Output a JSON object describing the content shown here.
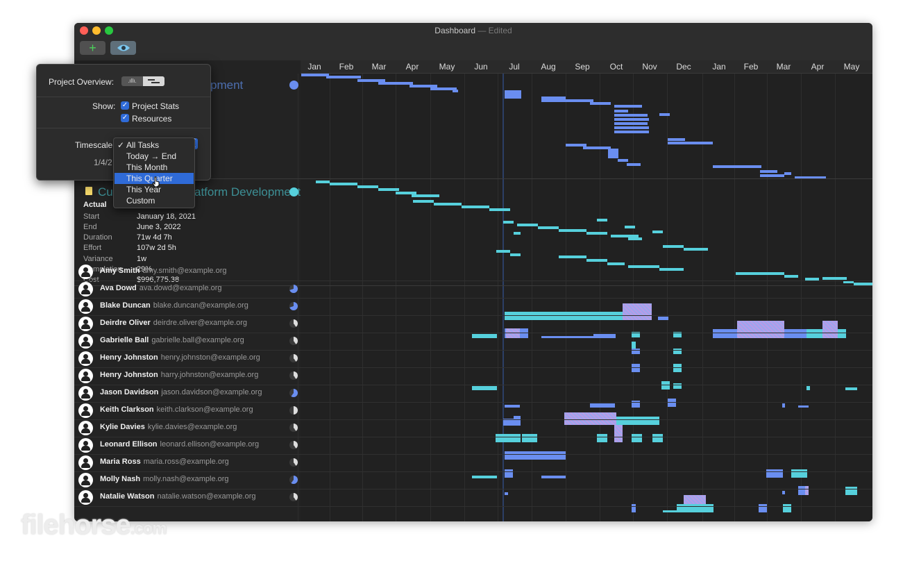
{
  "window": {
    "title": "Dashboard",
    "title_suffix": "— Edited",
    "traffic_lights": [
      "#ff5f57",
      "#febc2e",
      "#28c840"
    ]
  },
  "toolbar": {
    "add_icon": "plus-icon",
    "add_glyph": "+",
    "view_icon": "eye-icon"
  },
  "timeline": {
    "months": [
      "Jan",
      "Feb",
      "Mar",
      "Apr",
      "May",
      "Jun",
      "Jul",
      "Aug",
      "Sep",
      "Oct",
      "Nov",
      "Dec",
      "Jan",
      "Feb",
      "Mar",
      "Apr",
      "May"
    ]
  },
  "popover": {
    "project_overview_label": "Project Overview:",
    "show_label": "Show:",
    "project_stats_label": "Project Stats",
    "resources_label": "Resources",
    "project_stats_checked": true,
    "resources_checked": true,
    "timescale_label": "Timescale:",
    "date_value": "1/4/2"
  },
  "timescale_menu": {
    "selected": "All Tasks",
    "highlighted": "This Quarter",
    "options": [
      "All Tasks",
      "Today → End",
      "This Month",
      "This Quarter",
      "This Year",
      "Custom"
    ]
  },
  "projects": [
    {
      "name_visible": "pment",
      "color": "#6a8ef0"
    },
    {
      "name_visible_left": "Cus",
      "name_visible_right": "atform Development",
      "color": "#56d0dc",
      "stats_heading": "Actual",
      "stats": [
        {
          "label": "Start",
          "value": "January 18, 2021"
        },
        {
          "label": "End",
          "value": "June 3, 2022"
        },
        {
          "label": "Duration",
          "value": "71w 4d 7h"
        },
        {
          "label": "Effort",
          "value": "107w 2d 5h"
        },
        {
          "label": "Variance",
          "value": "1w"
        },
        {
          "label": "Completion",
          "value": "29%"
        },
        {
          "label": "Cost",
          "value": "$996,775.38"
        }
      ]
    }
  ],
  "resources": [
    {
      "name": "Amy Smith",
      "email": "amy.smith@example.org",
      "load": 0
    },
    {
      "name": "Ava Dowd",
      "email": "ava.dowd@example.org",
      "load": 0.7
    },
    {
      "name": "Blake Duncan",
      "email": "blake.duncan@example.org",
      "load": 0.7
    },
    {
      "name": "Deirdre Oliver",
      "email": "deirdre.oliver@example.org",
      "load": 0.4
    },
    {
      "name": "Gabrielle Ball",
      "email": "gabrielle.ball@example.org",
      "load": 0.4
    },
    {
      "name": "Henry Johnston",
      "email": "henry.johnston@example.org",
      "load": 0.4
    },
    {
      "name": "Henry Johnston",
      "email": "harry.johnston@example.org",
      "load": 0.4
    },
    {
      "name": "Jason Davidson",
      "email": "jason.davidson@example.org",
      "load": 0.6
    },
    {
      "name": "Keith Clarkson",
      "email": "keith.clarkson@example.org",
      "load": 0.5
    },
    {
      "name": "Kylie Davies",
      "email": "kylie.davies@example.org",
      "load": 0.4
    },
    {
      "name": "Leonard Ellison",
      "email": "leonard.ellison@example.org",
      "load": 0.4
    },
    {
      "name": "Maria Ross",
      "email": "maria.ross@example.org",
      "load": 0.4
    },
    {
      "name": "Molly Nash",
      "email": "molly.nash@example.org",
      "load": 0.6
    },
    {
      "name": "Natalie Watson",
      "email": "natalie.watson@example.org",
      "load": 0.4
    }
  ],
  "watermark": {
    "brand": "filehorse",
    "suffix": ".com"
  },
  "colors": {
    "blue": "#6a8ef0",
    "cyan": "#56d0dc",
    "hatch": "#a89ee8"
  }
}
